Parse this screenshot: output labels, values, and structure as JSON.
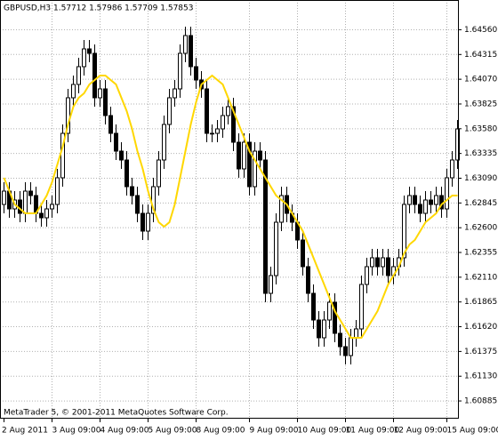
{
  "chart_data": {
    "type": "candlestick",
    "title": "GBPUSD,H3  1.57712 1.57986 1.57709 1.57853",
    "annotation": "MetaTrader 5, © 2001-2011 MetaQuotes Software Corp.",
    "up_color": "#ffffff",
    "down_color": "#000000",
    "line_color": "#ffd700",
    "grid": true,
    "ylim": [
      1.60714,
      1.6485
    ],
    "yticks": [
      {
        "value": 1.6456,
        "label": "1.64560"
      },
      1.64315,
      {
        "value": 1.6407,
        "label": "1.64070"
      },
      1.63825,
      {
        "value": 1.6358,
        "label": "1.63580"
      },
      1.63335,
      {
        "value": 1.6309,
        "label": "1.63090"
      },
      1.62845,
      {
        "value": 1.626,
        "label": "1.62600"
      },
      1.62355,
      {
        "value": 1.6211,
        "label": "1.62110"
      },
      1.61865,
      {
        "value": 1.6162,
        "label": "1.61620"
      },
      1.61375,
      {
        "value": 1.6113,
        "label": "1.61130"
      },
      1.60885
    ],
    "categories": [
      "2 Aug 2011",
      null,
      null,
      null,
      null,
      null,
      null,
      null,
      null,
      "3 Aug 09:00",
      null,
      null,
      null,
      null,
      null,
      null,
      null,
      null,
      "4 Aug 09:00",
      null,
      null,
      null,
      null,
      null,
      null,
      null,
      null,
      "5 Aug 09:00",
      null,
      null,
      null,
      null,
      null,
      null,
      null,
      null,
      "8 Aug 09:00",
      null,
      null,
      null,
      null,
      null,
      null,
      null,
      null,
      null,
      "9 Aug 09:00",
      null,
      null,
      null,
      null,
      null,
      null,
      null,
      null,
      "10 Aug 09:00",
      null,
      null,
      null,
      null,
      null,
      null,
      null,
      null,
      "11 Aug 09:00",
      null,
      null,
      null,
      null,
      null,
      null,
      null,
      null,
      "12 Aug 09:00",
      null,
      null,
      null,
      null,
      null,
      null,
      null,
      null,
      null,
      "15 Aug 09:00",
      null,
      null
    ],
    "open": [
      1.62826,
      1.62958,
      1.62782,
      1.6287,
      1.62738,
      1.62958,
      1.62914,
      1.62738,
      1.62694,
      1.62782,
      1.62826,
      1.6309,
      1.6353,
      1.63882,
      1.64014,
      1.6419,
      1.64366,
      1.64322,
      1.63882,
      1.6397,
      1.63706,
      1.6353,
      1.63354,
      1.63266,
      1.63002,
      1.62914,
      1.62738,
      1.62562,
      1.62738,
      1.63002,
      1.63266,
      1.63618,
      1.63882,
      1.6397,
      1.64322,
      1.64498,
      1.6419,
      1.64058,
      1.6397,
      1.6353,
      1.6353,
      1.63574,
      1.63706,
      1.63794,
      1.63442,
      1.63178,
      1.63442,
      1.63002,
      1.63354,
      1.63266,
      1.61946,
      1.62122,
      1.6265,
      1.62914,
      1.62738,
      1.6265,
      1.62474,
      1.6221,
      1.61946,
      1.61682,
      1.61506,
      1.61682,
      1.61858,
      1.6155,
      1.61418,
      1.6133,
      1.61506,
      1.61594,
      1.62034,
      1.6221,
      1.62298,
      1.6221,
      1.62298,
      1.62122,
      1.6221,
      1.62298,
      1.62826,
      1.62914,
      1.62826,
      1.62738,
      1.6287,
      1.62826,
      1.62914,
      1.62782,
      1.6309,
      1.63266
    ],
    "high": [
      1.63046,
      1.63046,
      1.62958,
      1.62958,
      1.63046,
      1.63046,
      1.63002,
      1.62826,
      1.6287,
      1.62914,
      1.63178,
      1.63618,
      1.6397,
      1.64102,
      1.64278,
      1.64454,
      1.64454,
      1.6441,
      1.64058,
      1.64058,
      1.63794,
      1.63618,
      1.63442,
      1.63354,
      1.6309,
      1.63002,
      1.62826,
      1.62826,
      1.6309,
      1.63354,
      1.63706,
      1.6397,
      1.64058,
      1.6441,
      1.64586,
      1.64586,
      1.64278,
      1.64146,
      1.64058,
      1.63618,
      1.63662,
      1.63794,
      1.63882,
      1.63882,
      1.6353,
      1.6353,
      1.6353,
      1.63442,
      1.63442,
      1.63354,
      1.6221,
      1.62738,
      1.63002,
      1.63002,
      1.62826,
      1.62738,
      1.62562,
      1.62298,
      1.62034,
      1.6177,
      1.6177,
      1.61946,
      1.61946,
      1.61638,
      1.61506,
      1.61594,
      1.61682,
      1.62122,
      1.62298,
      1.62386,
      1.62386,
      1.62386,
      1.62386,
      1.62298,
      1.62386,
      1.62914,
      1.63002,
      1.63002,
      1.62914,
      1.62958,
      1.62958,
      1.63002,
      1.63002,
      1.63178,
      1.63354,
      1.63662
    ],
    "low": [
      1.62738,
      1.62694,
      1.62694,
      1.6265,
      1.6265,
      1.62826,
      1.6265,
      1.62606,
      1.62606,
      1.62694,
      1.62738,
      1.63002,
      1.63442,
      1.63794,
      1.63926,
      1.64102,
      1.64234,
      1.63794,
      1.63794,
      1.63618,
      1.63442,
      1.63266,
      1.63178,
      1.62914,
      1.62826,
      1.6265,
      1.62474,
      1.62474,
      1.6265,
      1.62914,
      1.63178,
      1.6353,
      1.63794,
      1.63882,
      1.64234,
      1.64102,
      1.6397,
      1.63882,
      1.63442,
      1.63442,
      1.63442,
      1.63486,
      1.63618,
      1.63354,
      1.6309,
      1.6309,
      1.62914,
      1.62914,
      1.63178,
      1.61858,
      1.61858,
      1.62034,
      1.62562,
      1.6265,
      1.62562,
      1.62386,
      1.62122,
      1.61858,
      1.61594,
      1.61418,
      1.61418,
      1.61594,
      1.61462,
      1.6133,
      1.61242,
      1.61242,
      1.61418,
      1.61506,
      1.61946,
      1.62122,
      1.62122,
      1.62122,
      1.62034,
      1.62034,
      1.62122,
      1.6221,
      1.62738,
      1.62738,
      1.6265,
      1.6265,
      1.62738,
      1.62738,
      1.62694,
      1.62694,
      1.63002,
      1.63178
    ],
    "close": [
      1.62958,
      1.62782,
      1.6287,
      1.62738,
      1.62958,
      1.62914,
      1.62738,
      1.62694,
      1.62782,
      1.62826,
      1.6309,
      1.6353,
      1.63882,
      1.64014,
      1.6419,
      1.64366,
      1.64322,
      1.63882,
      1.6397,
      1.63706,
      1.6353,
      1.63354,
      1.63266,
      1.63002,
      1.62914,
      1.62738,
      1.62562,
      1.62738,
      1.63002,
      1.63266,
      1.63618,
      1.63882,
      1.6397,
      1.64322,
      1.64498,
      1.6419,
      1.64058,
      1.6397,
      1.6353,
      1.6353,
      1.63574,
      1.63706,
      1.63794,
      1.63442,
      1.63178,
      1.63442,
      1.63002,
      1.63354,
      1.63266,
      1.61946,
      1.62122,
      1.6265,
      1.62914,
      1.62738,
      1.6265,
      1.62474,
      1.6221,
      1.61946,
      1.61682,
      1.61506,
      1.61682,
      1.61858,
      1.6155,
      1.61418,
      1.6133,
      1.61506,
      1.61594,
      1.62034,
      1.6221,
      1.62298,
      1.6221,
      1.62298,
      1.62122,
      1.6221,
      1.62298,
      1.62826,
      1.62914,
      1.62826,
      1.62738,
      1.6287,
      1.62826,
      1.62914,
      1.62782,
      1.6309,
      1.63266,
      1.63574
    ],
    "line": [
      1.6309,
      1.62958,
      1.62826,
      1.62782,
      1.62738,
      1.62738,
      1.62738,
      1.62826,
      1.62914,
      1.63046,
      1.63222,
      1.63398,
      1.63618,
      1.63794,
      1.63882,
      1.63926,
      1.64014,
      1.64058,
      1.64102,
      1.64102,
      1.64058,
      1.64014,
      1.63882,
      1.6375,
      1.63574,
      1.63354,
      1.63178,
      1.62958,
      1.62782,
      1.6265,
      1.62606,
      1.6265,
      1.62826,
      1.6309,
      1.63354,
      1.63618,
      1.63838,
      1.64014,
      1.64058,
      1.64102,
      1.64058,
      1.64014,
      1.63882,
      1.6375,
      1.63618,
      1.63486,
      1.63354,
      1.63266,
      1.63178,
      1.6309,
      1.63002,
      1.62914,
      1.6287,
      1.62826,
      1.62738,
      1.6265,
      1.62562,
      1.6243,
      1.62298,
      1.62166,
      1.62034,
      1.61902,
      1.6177,
      1.61682,
      1.61594,
      1.61506,
      1.61506,
      1.61506,
      1.61594,
      1.61682,
      1.6177,
      1.61902,
      1.62034,
      1.62122,
      1.6221,
      1.62342,
      1.6243,
      1.62474,
      1.62562,
      1.6265,
      1.62694,
      1.62738,
      1.62826,
      1.6287,
      1.62914,
      1.62914
    ]
  }
}
